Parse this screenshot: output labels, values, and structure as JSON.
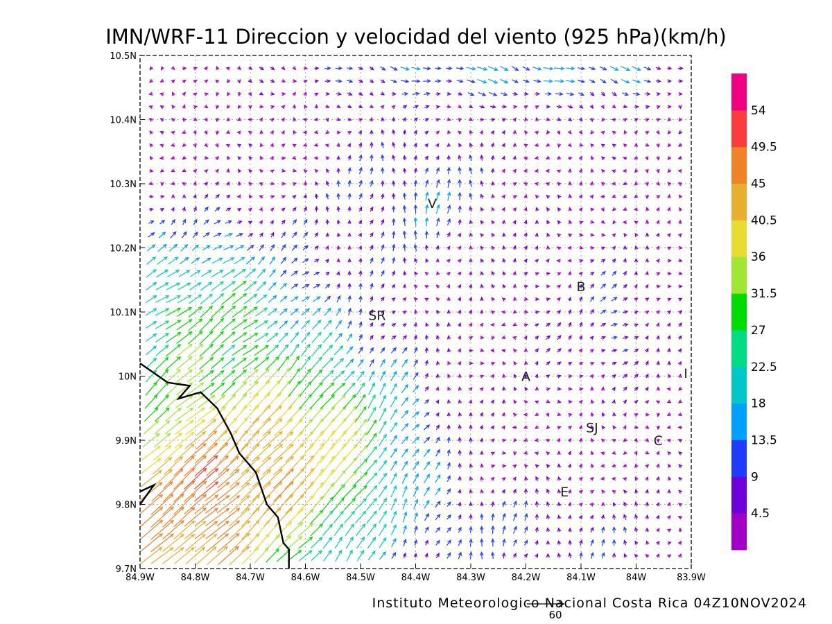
{
  "chart_data": {
    "type": "vector-field",
    "title": "IMN/WRF-11 Direccion y velocidad del viento (925 hPa)(km/h)",
    "footer": "Instituto Meteorologico Nacional Costa Rica 04Z10NOV2024",
    "xlim": [
      -84.9,
      -83.9
    ],
    "ylim": [
      9.7,
      10.5
    ],
    "x_ticks": [
      {
        "value": -84.9,
        "label": "84.9W"
      },
      {
        "value": -84.8,
        "label": "84.8W"
      },
      {
        "value": -84.7,
        "label": "84.7W"
      },
      {
        "value": -84.6,
        "label": "84.6W"
      },
      {
        "value": -84.5,
        "label": "84.5W"
      },
      {
        "value": -84.4,
        "label": "84.4W"
      },
      {
        "value": -84.3,
        "label": "84.3W"
      },
      {
        "value": -84.2,
        "label": "84.2W"
      },
      {
        "value": -84.1,
        "label": "84.1W"
      },
      {
        "value": -84.0,
        "label": "84W"
      },
      {
        "value": -83.9,
        "label": "83.9W"
      }
    ],
    "y_ticks": [
      {
        "value": 9.7,
        "label": "9.7N"
      },
      {
        "value": 9.8,
        "label": "9.8N"
      },
      {
        "value": 9.9,
        "label": "9.9N"
      },
      {
        "value": 10.0,
        "label": "10N"
      },
      {
        "value": 10.1,
        "label": "10.1N"
      },
      {
        "value": 10.2,
        "label": "10.2N"
      },
      {
        "value": 10.3,
        "label": "10.3N"
      },
      {
        "value": 10.4,
        "label": "10.4N"
      },
      {
        "value": 10.5,
        "label": "10.5N"
      }
    ],
    "grid": true,
    "colorbar": {
      "placement": "right",
      "labels": [
        "4.5",
        "9",
        "13.5",
        "18",
        "22.5",
        "27",
        "31.5",
        "36",
        "40.5",
        "45",
        "49.5",
        "54"
      ],
      "bounds": [
        0,
        4.5,
        9,
        13.5,
        18,
        22.5,
        27,
        31.5,
        36,
        40.5,
        45,
        49.5,
        54,
        58.5
      ],
      "colors": [
        "#a000c8",
        "#6e00dc",
        "#1e3cff",
        "#00a0ff",
        "#00c8c8",
        "#00dc82",
        "#00dc00",
        "#a0e632",
        "#e6dc32",
        "#e6af2d",
        "#f08228",
        "#fa3c3c",
        "#f00082"
      ]
    },
    "reference_vector": {
      "value": 60,
      "label": "60"
    },
    "cities": [
      {
        "label": "V",
        "lon": -84.37,
        "lat": 10.27
      },
      {
        "label": "SR",
        "lon": -84.47,
        "lat": 10.095
      },
      {
        "label": "B",
        "lon": -84.1,
        "lat": 10.14
      },
      {
        "label": "A",
        "lon": -84.2,
        "lat": 10.0
      },
      {
        "label": "I",
        "lon": -83.91,
        "lat": 10.005
      },
      {
        "label": "SJ",
        "lon": -84.08,
        "lat": 9.92
      },
      {
        "label": "C",
        "lon": -83.96,
        "lat": 9.9
      },
      {
        "label": "E",
        "lon": -84.13,
        "lat": 9.82
      }
    ],
    "coastline": [
      [
        -84.9,
        10.02
      ],
      [
        -84.85,
        9.99
      ],
      [
        -84.81,
        9.985
      ],
      [
        -84.83,
        9.965
      ],
      [
        -84.79,
        9.975
      ],
      [
        -84.76,
        9.95
      ],
      [
        -84.735,
        9.91
      ],
      [
        -84.72,
        9.88
      ],
      [
        -84.69,
        9.85
      ],
      [
        -84.67,
        9.8
      ],
      [
        -84.65,
        9.78
      ],
      [
        -84.64,
        9.74
      ],
      [
        -84.63,
        9.73
      ],
      [
        -84.63,
        9.7
      ]
    ],
    "coastline_west": [
      [
        -84.9,
        9.82
      ],
      [
        -84.875,
        9.83
      ],
      [
        -84.9,
        9.8
      ]
    ],
    "wind_grid": {
      "lon_start": -84.9,
      "lon_step": 0.02,
      "lon_count": 51,
      "lat_start": 9.7,
      "lat_step": 0.02,
      "lat_count": 41,
      "regions": [
        {
          "name": "strong-southwest-flow",
          "speed_kmh": 45,
          "dir_deg_to": 40
        },
        {
          "name": "southeast-weak-convergence",
          "speed_kmh": 10,
          "dir_deg_to": 160
        },
        {
          "name": "northwest-onshore",
          "speed_kmh": 18,
          "dir_deg_to": 70
        },
        {
          "name": "north-easterly",
          "speed_kmh": 12,
          "dir_deg_to": 200
        },
        {
          "name": "northeast-band",
          "speed_kmh": 18,
          "dir_deg_to": 300
        }
      ]
    }
  }
}
